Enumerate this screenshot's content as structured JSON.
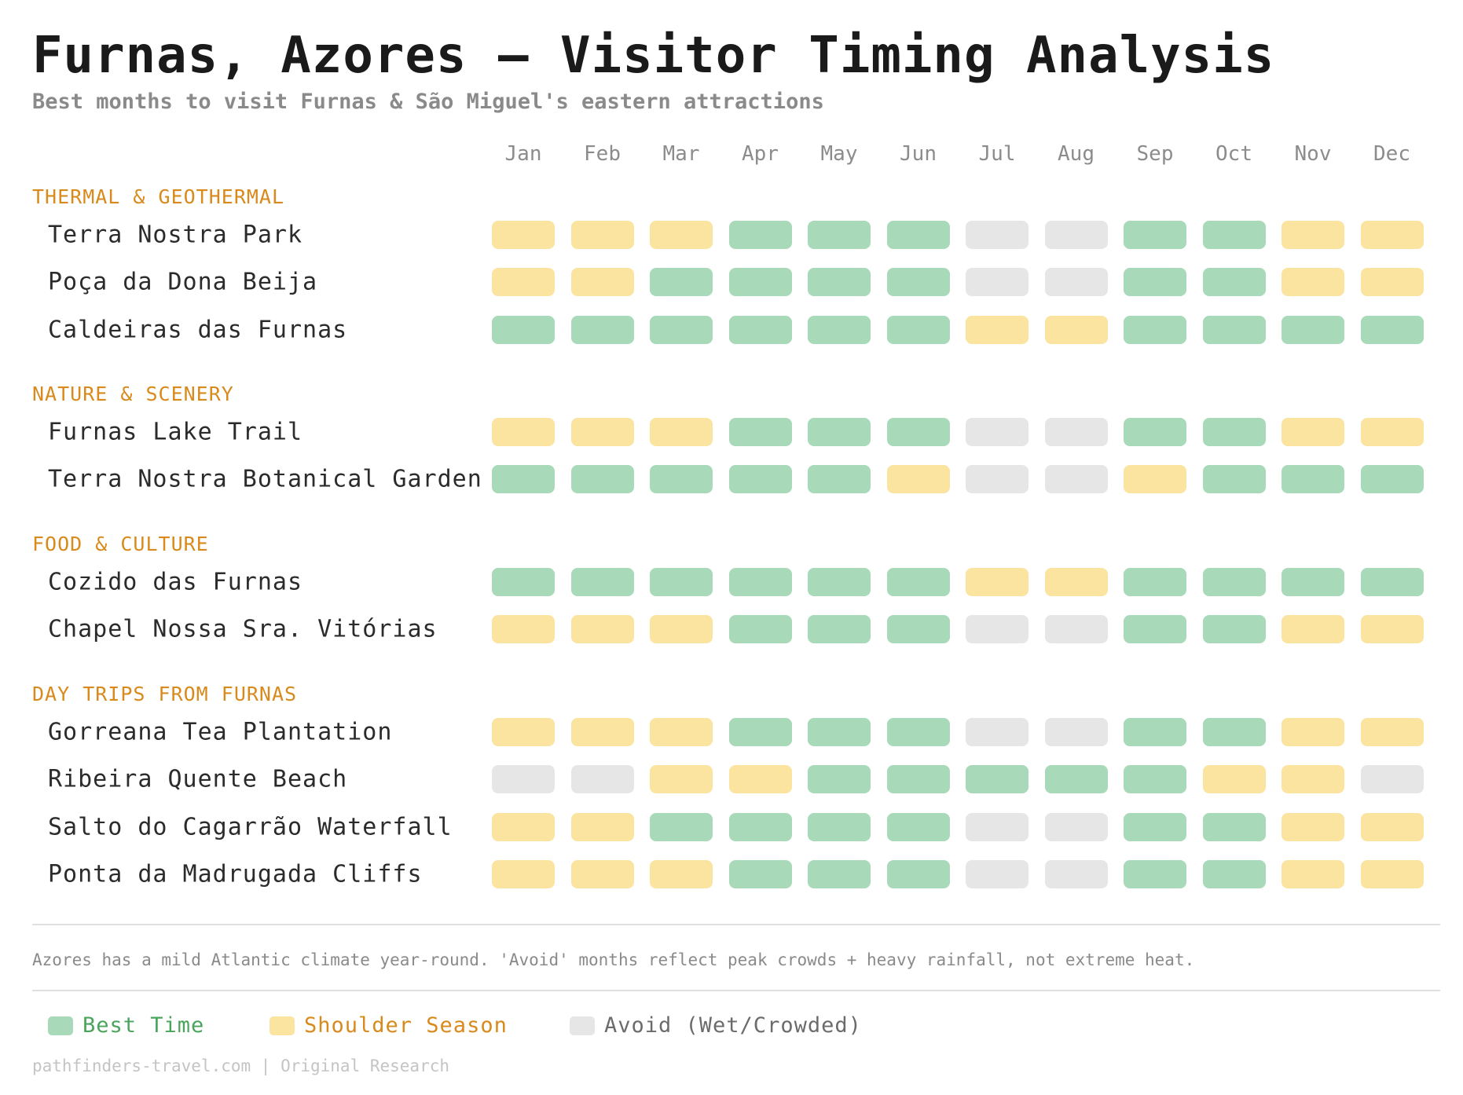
{
  "title": "Furnas, Azores — Visitor Timing Analysis",
  "subtitle": "Best months to visit Furnas & São Miguel's eastern attractions",
  "note": "Azores has a mild Atlantic climate year-round. 'Avoid' months reflect peak crowds + heavy rainfall, not extreme heat.",
  "footer": "pathfinders-travel.com | Original Research",
  "colors": {
    "best": "#a8d9b8",
    "shoulder": "#fbe3a0",
    "avoid": "#e6e6e6",
    "category": "#d98a1c"
  },
  "legend": [
    {
      "key": "best",
      "label": "Best Time",
      "color": "#a8d9b8",
      "text_color": "#4aa45c"
    },
    {
      "key": "shoulder",
      "label": "Shoulder Season",
      "color": "#fbe3a0",
      "text_color": "#d98a1c"
    },
    {
      "key": "avoid",
      "label": "Avoid (Wet/Crowded)",
      "color": "#e6e6e6",
      "text_color": "#6b6b6b"
    }
  ],
  "chart_data": {
    "type": "heatmap",
    "title": "Furnas, Azores — Visitor Timing Analysis",
    "subtitle": "Best months to visit Furnas & São Miguel's eastern attractions",
    "legend_position": "bottom",
    "months": [
      "Jan",
      "Feb",
      "Mar",
      "Apr",
      "May",
      "Jun",
      "Jul",
      "Aug",
      "Sep",
      "Oct",
      "Nov",
      "Dec"
    ],
    "categories": [
      {
        "name": "THERMAL & GEOTHERMAL",
        "rows": [
          {
            "name": "Terra Nostra Park",
            "values": [
              "shoulder",
              "shoulder",
              "shoulder",
              "best",
              "best",
              "best",
              "avoid",
              "avoid",
              "best",
              "best",
              "shoulder",
              "shoulder"
            ]
          },
          {
            "name": "Poça da Dona Beija",
            "values": [
              "shoulder",
              "shoulder",
              "best",
              "best",
              "best",
              "best",
              "avoid",
              "avoid",
              "best",
              "best",
              "shoulder",
              "shoulder"
            ]
          },
          {
            "name": "Caldeiras das Furnas",
            "values": [
              "best",
              "best",
              "best",
              "best",
              "best",
              "best",
              "shoulder",
              "shoulder",
              "best",
              "best",
              "best",
              "best"
            ]
          }
        ]
      },
      {
        "name": "NATURE & SCENERY",
        "rows": [
          {
            "name": "Furnas Lake Trail",
            "values": [
              "shoulder",
              "shoulder",
              "shoulder",
              "best",
              "best",
              "best",
              "avoid",
              "avoid",
              "best",
              "best",
              "shoulder",
              "shoulder"
            ]
          },
          {
            "name": "Terra Nostra Botanical Garden",
            "values": [
              "best",
              "best",
              "best",
              "best",
              "best",
              "shoulder",
              "avoid",
              "avoid",
              "shoulder",
              "best",
              "best",
              "best"
            ]
          }
        ]
      },
      {
        "name": "FOOD & CULTURE",
        "rows": [
          {
            "name": "Cozido das Furnas",
            "values": [
              "best",
              "best",
              "best",
              "best",
              "best",
              "best",
              "shoulder",
              "shoulder",
              "best",
              "best",
              "best",
              "best"
            ]
          },
          {
            "name": "Chapel Nossa Sra. Vitórias",
            "values": [
              "shoulder",
              "shoulder",
              "shoulder",
              "best",
              "best",
              "best",
              "avoid",
              "avoid",
              "best",
              "best",
              "shoulder",
              "shoulder"
            ]
          }
        ]
      },
      {
        "name": "DAY TRIPS FROM FURNAS",
        "rows": [
          {
            "name": "Gorreana Tea Plantation",
            "values": [
              "shoulder",
              "shoulder",
              "shoulder",
              "best",
              "best",
              "best",
              "avoid",
              "avoid",
              "best",
              "best",
              "shoulder",
              "shoulder"
            ]
          },
          {
            "name": "Ribeira Quente Beach",
            "values": [
              "avoid",
              "avoid",
              "shoulder",
              "shoulder",
              "best",
              "best",
              "best",
              "best",
              "best",
              "shoulder",
              "shoulder",
              "avoid"
            ]
          },
          {
            "name": "Salto do Cagarrão Waterfall",
            "values": [
              "shoulder",
              "shoulder",
              "best",
              "best",
              "best",
              "best",
              "avoid",
              "avoid",
              "best",
              "best",
              "shoulder",
              "shoulder"
            ]
          },
          {
            "name": "Ponta da Madrugada Cliffs",
            "values": [
              "shoulder",
              "shoulder",
              "shoulder",
              "best",
              "best",
              "best",
              "avoid",
              "avoid",
              "best",
              "best",
              "shoulder",
              "shoulder"
            ]
          }
        ]
      }
    ]
  }
}
